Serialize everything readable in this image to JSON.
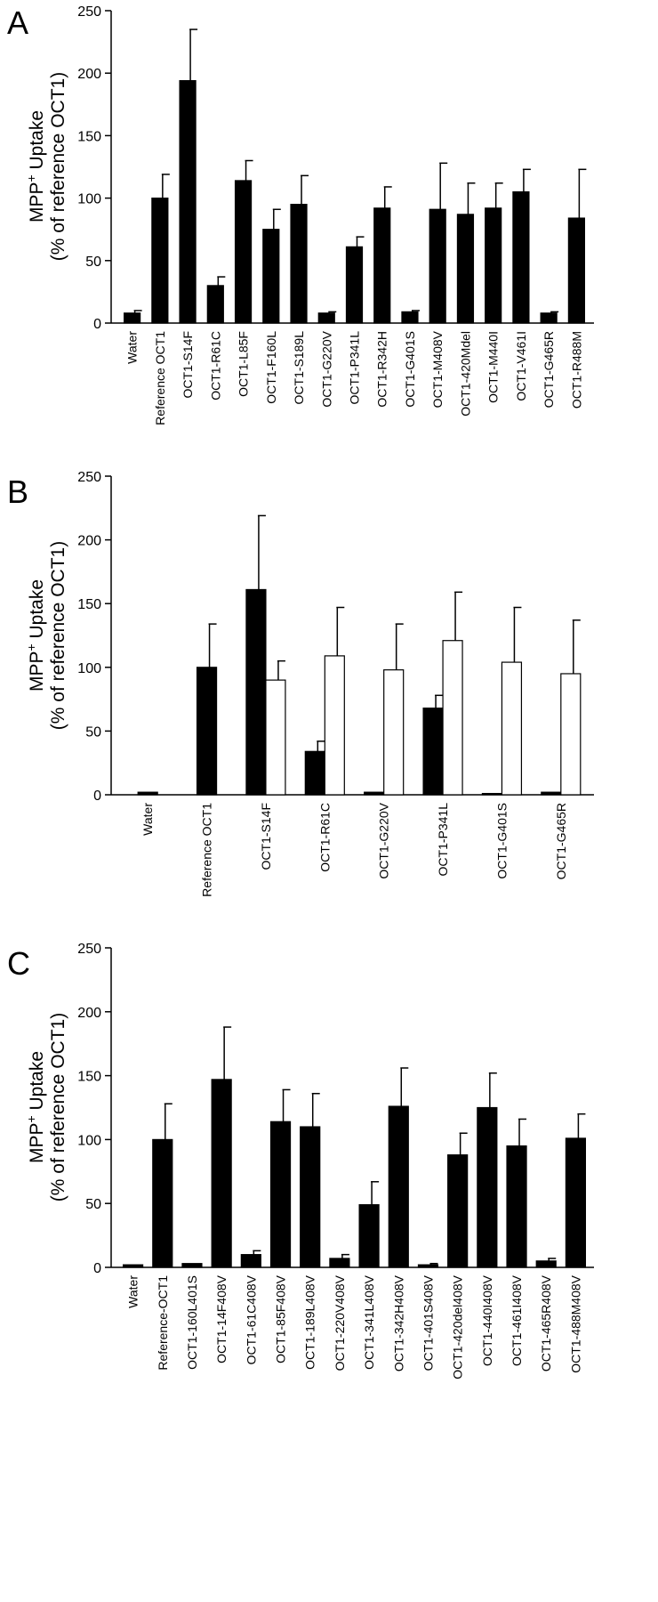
{
  "chart_data": [
    {
      "panel": "A",
      "type": "bar",
      "ylabel_line1": "MPP",
      "ylabel_sup": "+",
      "ylabel_line1_rest": " Uptake",
      "ylabel_line2": "(% of reference OCT1)",
      "ylim": [
        0,
        250
      ],
      "yticks": [
        0,
        50,
        100,
        150,
        200,
        250
      ],
      "categories": [
        "Water",
        "Reference OCT1",
        "OCT1-S14F",
        "OCT1-R61C",
        "OCT1-L85F",
        "OCT1-F160L",
        "OCT1-S189L",
        "OCT1-G220V",
        "OCT1-P341L",
        "OCT1-R342H",
        "OCT1-G401S",
        "OCT1-M408V",
        "OCT1-420Mdel",
        "OCT1-M440I",
        "OCT1-V461I",
        "OCT1-G465R",
        "OCT1-R488M"
      ],
      "series": [
        {
          "fill": "#000000",
          "values": [
            8,
            100,
            194,
            30,
            114,
            75,
            95,
            8,
            61,
            92,
            9,
            91,
            87,
            92,
            105,
            8,
            84
          ],
          "errors": [
            2,
            19,
            41,
            7,
            16,
            16,
            23,
            1,
            8,
            17,
            1,
            37,
            25,
            20,
            18,
            1,
            39
          ]
        }
      ]
    },
    {
      "panel": "B",
      "type": "bar",
      "ylabel_line1": "MPP",
      "ylabel_sup": "+",
      "ylabel_line1_rest": " Uptake",
      "ylabel_line2": "(% of reference OCT1)",
      "ylim": [
        0,
        250
      ],
      "yticks": [
        0,
        50,
        100,
        150,
        200,
        250
      ],
      "categories": [
        "Water",
        "Reference OCT1",
        "OCT1-S14F",
        "OCT1-R61C",
        "OCT1-G220V",
        "OCT1-P341L",
        "OCT1-G401S",
        "OCT1-G465R"
      ],
      "series": [
        {
          "fill": "#000000",
          "values": [
            2,
            100,
            161,
            34,
            2,
            68,
            1,
            2
          ],
          "errors": [
            0,
            34,
            58,
            8,
            0,
            10,
            0,
            0
          ]
        },
        {
          "fill": "#ffffff",
          "values": [
            null,
            null,
            90,
            109,
            98,
            121,
            104,
            95
          ],
          "errors": [
            null,
            null,
            15,
            38,
            36,
            38,
            43,
            42
          ]
        }
      ]
    },
    {
      "panel": "C",
      "type": "bar",
      "ylabel_line1": "MPP",
      "ylabel_sup": "+",
      "ylabel_line1_rest": " Uptake",
      "ylabel_line2": "(% of reference OCT1)",
      "ylim": [
        0,
        250
      ],
      "yticks": [
        0,
        50,
        100,
        150,
        200,
        250
      ],
      "categories": [
        "Water",
        "Reference-OCT1",
        "OCT1-160L401S",
        "OCT1-14F408V",
        "OCT1-61C408V",
        "OCT1-85F408V",
        "OCT1-189L408V",
        "OCT1-220V408V",
        "OCT1-341L408V",
        "OCT1-342H408V",
        "OCT1-401S408V",
        "OCT1-420del408V",
        "OCT1-440I408V",
        "OCT1-461I408V",
        "OCT1-465R408V",
        "OCT1-488M408V"
      ],
      "series": [
        {
          "fill": "#000000",
          "values": [
            2,
            100,
            3,
            147,
            10,
            114,
            110,
            7,
            49,
            126,
            2,
            88,
            125,
            95,
            5,
            101
          ],
          "errors": [
            0,
            28,
            0,
            41,
            3,
            25,
            26,
            3,
            18,
            30,
            1,
            17,
            27,
            21,
            2,
            19
          ]
        }
      ]
    }
  ]
}
